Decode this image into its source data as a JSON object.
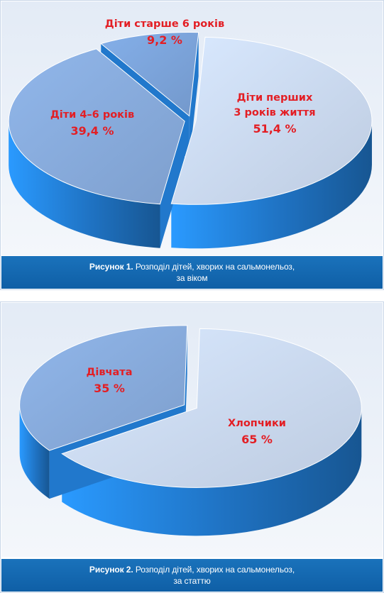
{
  "chart_data": [
    {
      "type": "pie",
      "categories": [
        "Діти перших 3 років життя",
        "Діти 4–6 років",
        "Діти старше 6 років"
      ],
      "values": [
        51.4,
        39.4,
        9.2
      ],
      "value_labels": [
        "51,4 %",
        "39,4 %",
        "9,2 %"
      ],
      "label_lines": [
        [
          "Діти перших",
          "3 років життя"
        ],
        [
          "Діти 4–6 років"
        ],
        [
          "Діти старше 6 років"
        ]
      ],
      "title": "Розподіл дітей, хворих на сальмонельоз, за віком",
      "style": "3d-exploded",
      "colors": [
        "#c9d8ee",
        "#86a9da",
        "#7aa2d8"
      ],
      "side_color": "#1f72c2"
    },
    {
      "type": "pie",
      "categories": [
        "Хлопчики",
        "Дівчата"
      ],
      "values": [
        65,
        35
      ],
      "value_labels": [
        "65 %",
        "35 %"
      ],
      "label_lines": [
        [
          "Хлопчики"
        ],
        [
          "Дівчата"
        ]
      ],
      "title": "Розподіл дітей, хворих на сальмонельоз, за статтю",
      "style": "3d-exploded",
      "colors": [
        "#c9d8ee",
        "#86a9da"
      ],
      "side_color": "#1f72c2"
    }
  ],
  "figures": [
    {
      "label": "Рисунок 1.",
      "caption_line1": "Розподіл дітей, хворих на сальмонельоз,",
      "caption_line2": "за віком"
    },
    {
      "label": "Рисунок 2.",
      "caption_line1": "Розподіл дітей, хворих на сальмонельоз,",
      "caption_line2": "за статтю"
    }
  ]
}
